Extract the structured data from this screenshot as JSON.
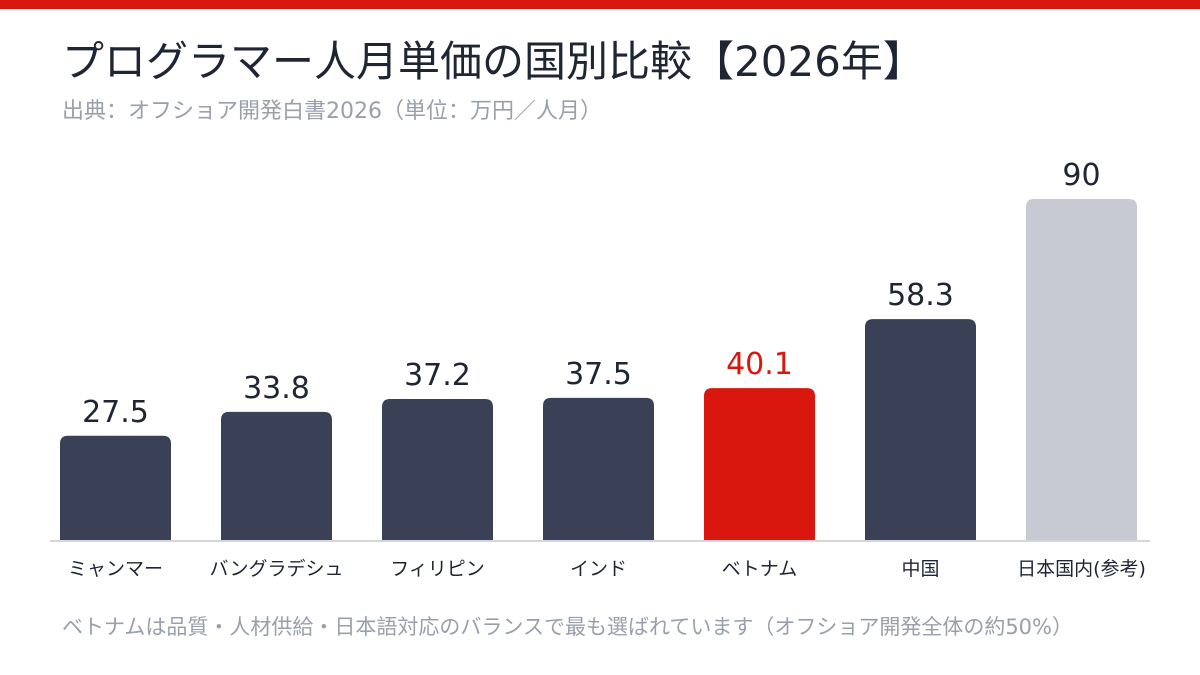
{
  "header": {
    "title": "プログラマー人月単価の国別比較【2026年】",
    "subtitle": "出典：オフショア開発白書2026（単位：万円／人月）"
  },
  "footer": {
    "note": "ベトナムは品質・人材供給・日本語対応のバランスで最も選ばれています（オフショア開発全体の約50%）"
  },
  "colors": {
    "accent": "#d9170f",
    "bar_default": "#3a4156",
    "bar_reference": "#c8cad3",
    "label_default": "#1f2533",
    "axis": "#d4d6dc"
  },
  "chart_data": {
    "type": "bar",
    "title": "プログラマー人月単価の国別比較【2026年】",
    "xlabel": "",
    "ylabel": "",
    "unit": "万円／人月",
    "ylim": [
      0,
      90
    ],
    "grid": false,
    "legend": "none",
    "categories": [
      "ミャンマー",
      "バングラデシュ",
      "フィリピン",
      "インド",
      "ベトナム",
      "中国",
      "日本国内(参考)"
    ],
    "values": [
      27.5,
      33.8,
      37.2,
      37.5,
      40.1,
      58.3,
      90
    ],
    "value_labels": [
      "27.5",
      "33.8",
      "37.2",
      "37.5",
      "40.1",
      "58.3",
      "90"
    ],
    "highlight": "ベトナム",
    "reference": "日本国内(参考)"
  }
}
